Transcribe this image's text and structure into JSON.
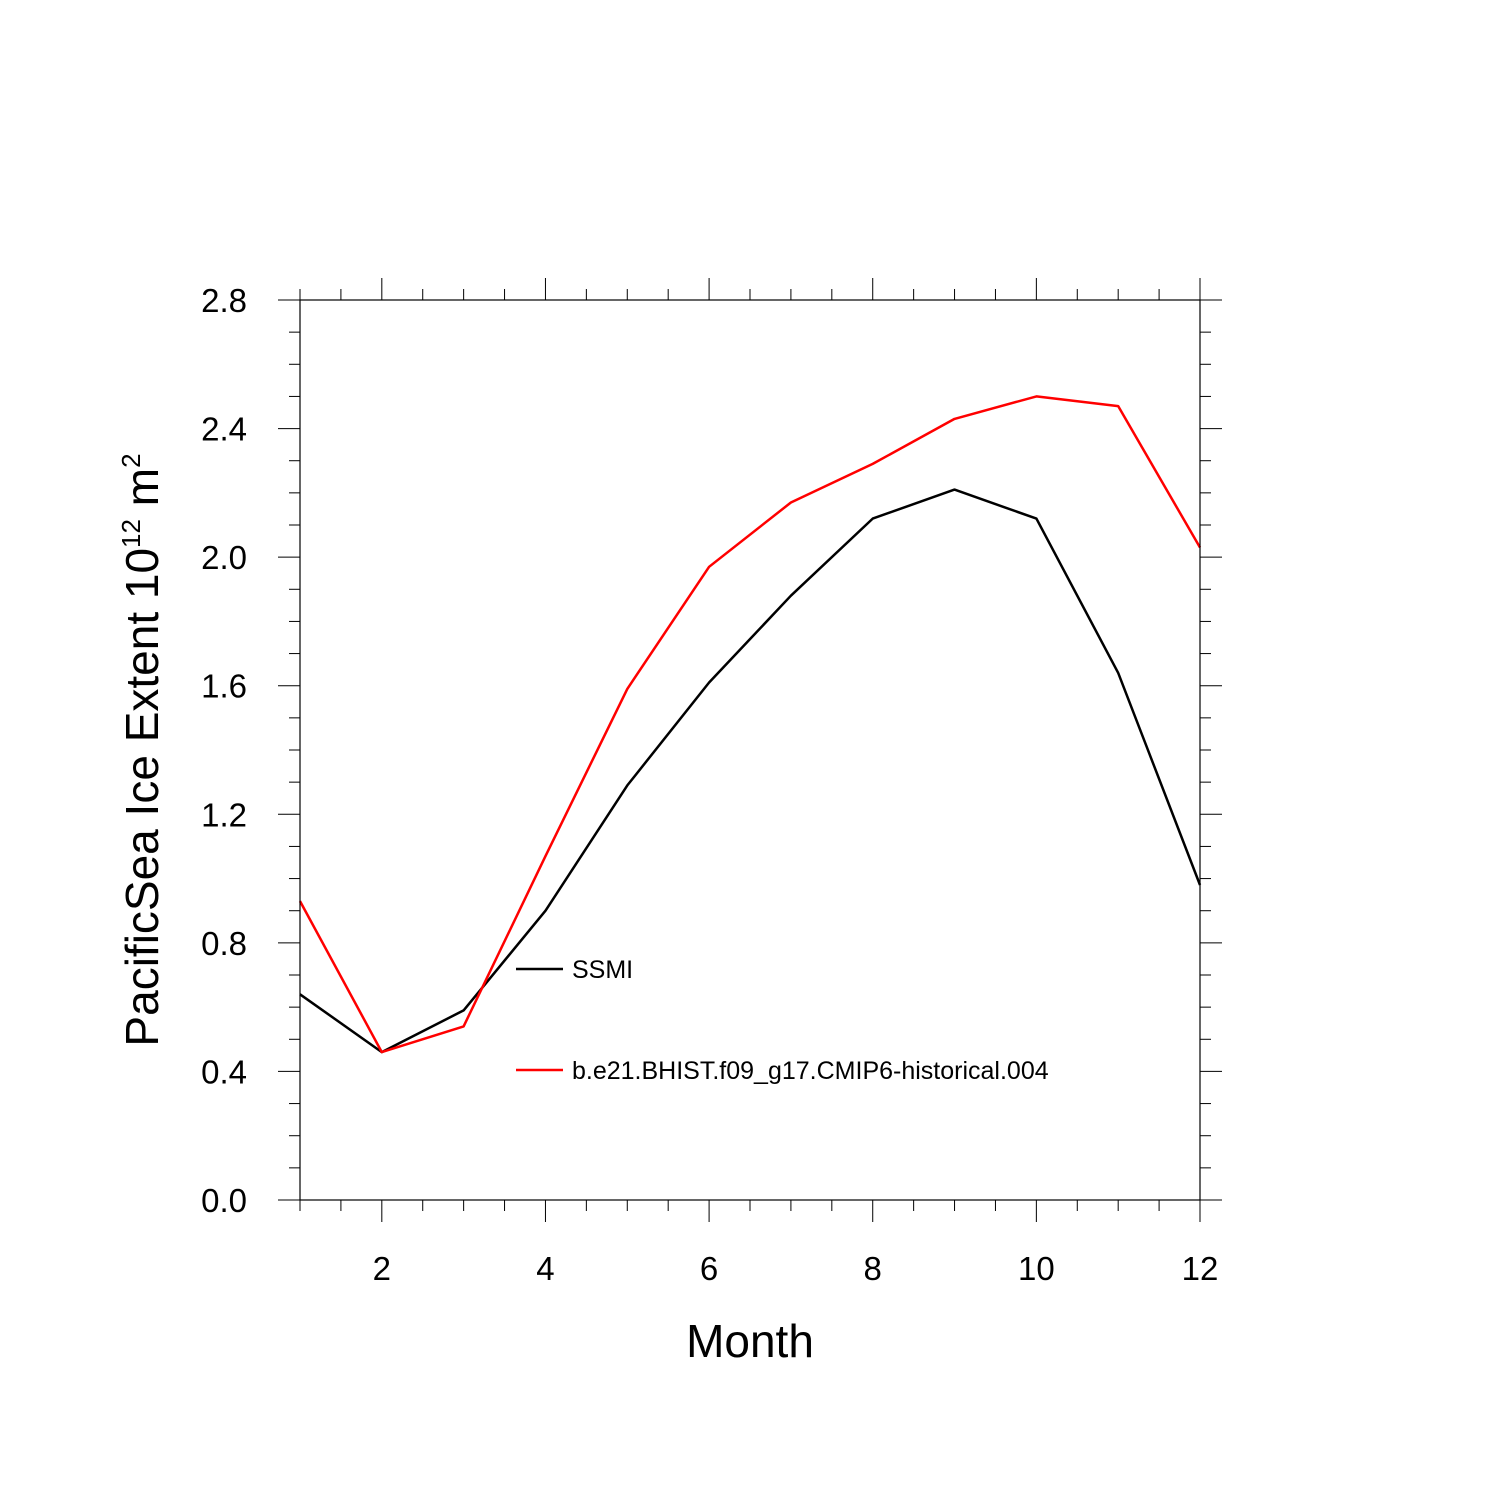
{
  "chart_data": {
    "type": "line",
    "x": [
      1,
      2,
      3,
      4,
      5,
      6,
      7,
      8,
      9,
      10,
      11,
      12
    ],
    "series": [
      {
        "name": "SSMI",
        "color": "#000000",
        "values": [
          0.64,
          0.46,
          0.59,
          0.9,
          1.29,
          1.61,
          1.88,
          2.12,
          2.21,
          2.12,
          1.64,
          0.98
        ]
      },
      {
        "name": "b.e21.BHIST.f09_g17.CMIP6-historical.004",
        "color": "#ff0000",
        "values": [
          0.93,
          0.46,
          0.54,
          1.07,
          1.59,
          1.97,
          2.17,
          2.29,
          2.43,
          2.5,
          2.47,
          2.03
        ]
      }
    ],
    "xlabel": "Month",
    "ylabel": {
      "main": "PacificSea Ice Extent 10",
      "exp1": "12",
      "unit": " m",
      "exp2": "2"
    },
    "xlim": [
      1,
      12
    ],
    "ylim": [
      0,
      2.8
    ],
    "x_ticks": [
      "2",
      "4",
      "6",
      "8",
      "10",
      "12"
    ],
    "x_tick_values": [
      2,
      4,
      6,
      8,
      10,
      12
    ],
    "y_ticks": [
      "0.0",
      "0.4",
      "0.8",
      "1.2",
      "1.6",
      "2.0",
      "2.4",
      "2.8"
    ],
    "y_tick_values": [
      0,
      0.4,
      0.8,
      1.2,
      1.6,
      2.0,
      2.4,
      2.8
    ],
    "grid": false,
    "legend_position": "inside-lower-center"
  }
}
